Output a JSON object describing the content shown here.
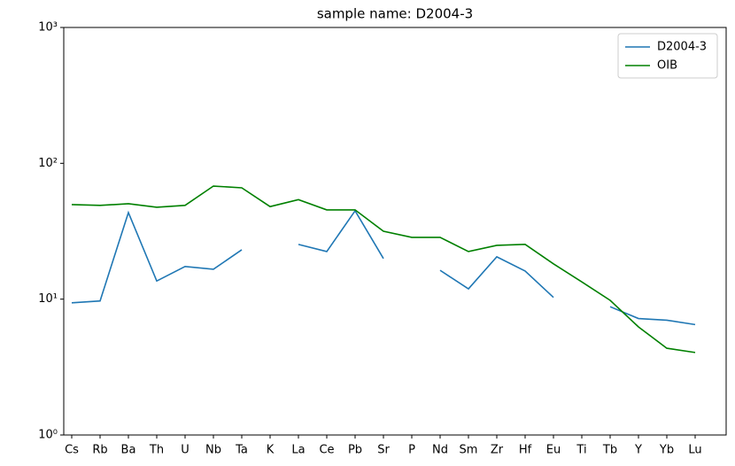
{
  "chart_data": {
    "type": "line",
    "title": "sample name: D2004-3",
    "categories": [
      "Cs",
      "Rb",
      "Ba",
      "Th",
      "U",
      "Nb",
      "Ta",
      "K",
      "La",
      "Ce",
      "Pb",
      "Sr",
      "P",
      "Nd",
      "Sm",
      "Zr",
      "Hf",
      "Eu",
      "Ti",
      "Tb",
      "Y",
      "Yb",
      "Lu"
    ],
    "series": [
      {
        "name": "D2004-3",
        "color": "#1f77b4",
        "values": [
          9.4,
          9.7,
          43.4,
          13.6,
          17.4,
          16.6,
          23.1,
          null,
          25.3,
          22.4,
          44.7,
          19.9,
          null,
          16.3,
          11.9,
          20.5,
          16.1,
          10.3,
          null,
          8.8,
          7.2,
          7.0,
          6.5
        ]
      },
      {
        "name": "OIB",
        "color": "#008000",
        "values": [
          49.7,
          49,
          50.4,
          47.5,
          49,
          68,
          66,
          48,
          54,
          45.4,
          45.4,
          31.6,
          28.5,
          28.5,
          22.4,
          24.9,
          25.3,
          18.2,
          13.4,
          9.8,
          6.25,
          4.35,
          4.05
        ]
      }
    ],
    "ylim": [
      1,
      1000
    ],
    "log_y": true,
    "yticks": [
      {
        "value": 1,
        "label": "10⁰"
      },
      {
        "value": 10,
        "label": "10¹"
      },
      {
        "value": 100,
        "label": "10²"
      },
      {
        "value": 1000,
        "label": "10³"
      }
    ],
    "legend": "upper right"
  }
}
